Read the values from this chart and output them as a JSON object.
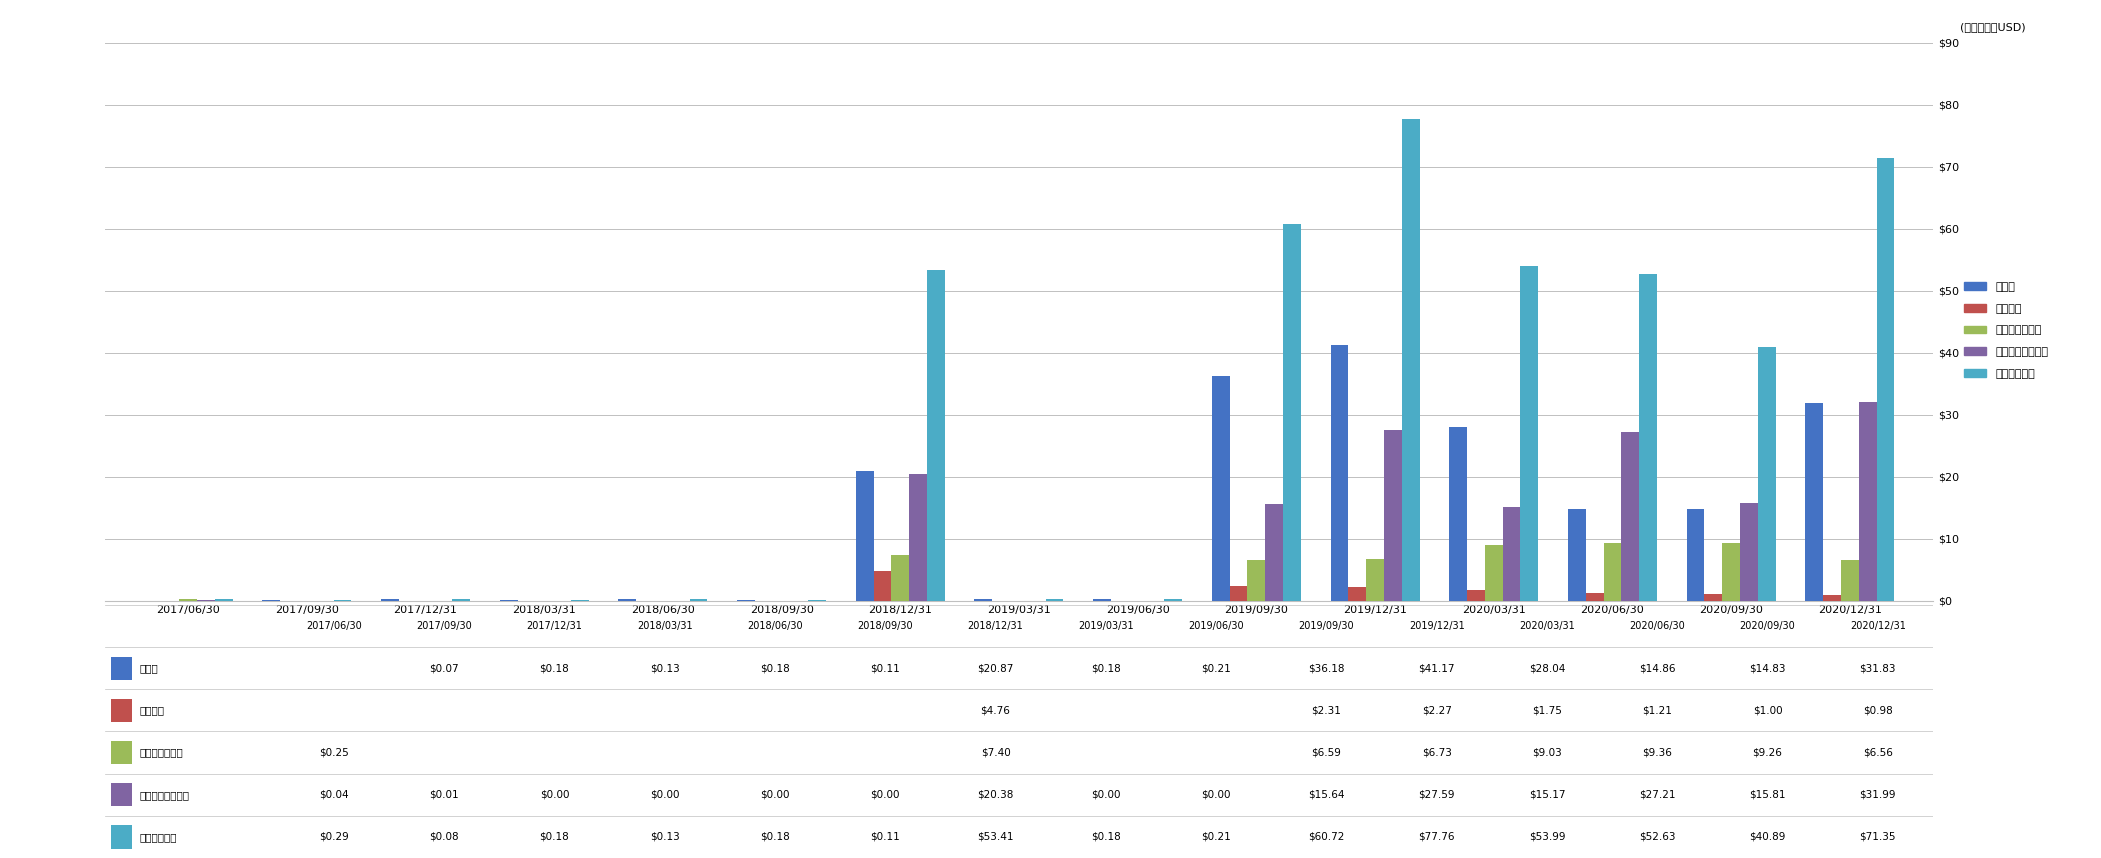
{
  "categories": [
    "2017/06/30",
    "2017/09/30",
    "2017/12/31",
    "2018/03/31",
    "2018/06/30",
    "2018/09/30",
    "2018/12/31",
    "2019/03/31",
    "2019/06/30",
    "2019/09/30",
    "2019/12/31",
    "2020/03/31",
    "2020/06/30",
    "2020/09/30",
    "2020/12/31"
  ],
  "series": {
    "買掛金": [
      0,
      0.07,
      0.18,
      0.13,
      0.18,
      0.11,
      20.87,
      0.18,
      0.21,
      36.18,
      41.17,
      28.04,
      14.86,
      14.83,
      31.83
    ],
    "繰延収益": [
      0,
      0,
      0,
      0,
      0,
      0,
      4.76,
      0,
      0,
      2.31,
      2.27,
      1.75,
      1.21,
      1.0,
      0.98
    ],
    "短期有利子負債": [
      0.25,
      0,
      0,
      0,
      0,
      0,
      7.4,
      0,
      0,
      6.59,
      6.73,
      9.03,
      9.36,
      9.26,
      6.56
    ],
    "その他の流動負債": [
      0.04,
      0.01,
      0.0,
      0.0,
      0.0,
      0.0,
      20.38,
      0.0,
      0.0,
      15.64,
      27.59,
      15.17,
      27.21,
      15.81,
      31.99
    ],
    "流動負債合計": [
      0.29,
      0.08,
      0.18,
      0.13,
      0.18,
      0.11,
      53.41,
      0.18,
      0.21,
      60.72,
      77.76,
      53.99,
      52.63,
      40.89,
      71.35
    ]
  },
  "colors": {
    "買掛金": "#4472C4",
    "繰延収益": "#C0504D",
    "短期有利子負債": "#9BBB59",
    "その他の流動負債": "#8064A2",
    "流動負債合計": "#4BACC6"
  },
  "ylim": [
    0,
    90
  ],
  "yticks": [
    0,
    10,
    20,
    30,
    40,
    50,
    60,
    70,
    80,
    90
  ],
  "ylabel": "(単位：百万USD)",
  "table_labels": [
    "買掛金",
    "繰延収益",
    "短期有利子負債",
    "その他の流動負債",
    "流動負債合計"
  ],
  "table_values": {
    "買掛金": [
      "",
      "$0.07",
      "$0.18",
      "$0.13",
      "$0.18",
      "$0.11",
      "$20.87",
      "$0.18",
      "$0.21",
      "$36.18",
      "$41.17",
      "$28.04",
      "$14.86",
      "$14.83",
      "$31.83"
    ],
    "繰延収益": [
      "",
      "",
      "",
      "",
      "",
      "",
      "$4.76",
      "",
      "",
      "$2.31",
      "$2.27",
      "$1.75",
      "$1.21",
      "$1.00",
      "$0.98"
    ],
    "短期有利子負債": [
      "$0.25",
      "",
      "",
      "",
      "",
      "",
      "$7.40",
      "",
      "",
      "$6.59",
      "$6.73",
      "$9.03",
      "$9.36",
      "$9.26",
      "$6.56"
    ],
    "その他の流動負債": [
      "$0.04",
      "$0.01",
      "$0.00",
      "$0.00",
      "$0.00",
      "$0.00",
      "$20.38",
      "$0.00",
      "$0.00",
      "$15.64",
      "$27.59",
      "$15.17",
      "$27.21",
      "$15.81",
      "$31.99"
    ],
    "流動負債合計": [
      "$0.29",
      "$0.08",
      "$0.18",
      "$0.13",
      "$0.18",
      "$0.11",
      "$53.41",
      "$0.18",
      "$0.21",
      "$60.72",
      "$77.76",
      "$53.99",
      "$52.63",
      "$40.89",
      "$71.35"
    ]
  },
  "bar_width": 0.15,
  "background_color": "#FFFFFF",
  "grid_color": "#C0C0C0",
  "font_size_tick": 8,
  "font_size_table": 7.5,
  "font_size_ylabel": 8
}
